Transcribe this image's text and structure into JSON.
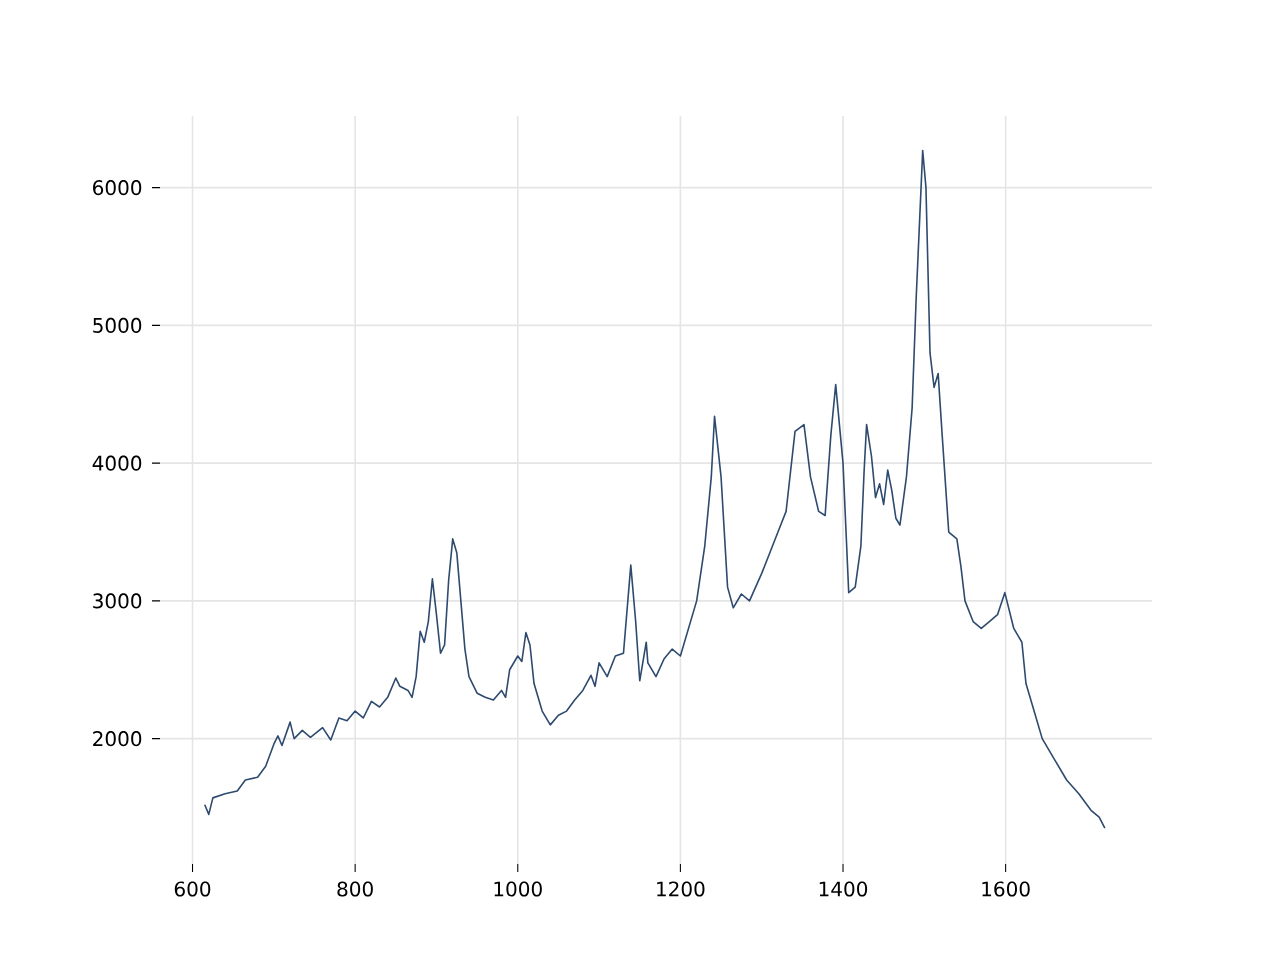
{
  "chart_data": {
    "type": "line",
    "color": "#2e4a6e",
    "grid": true,
    "marker": "none",
    "line_style": "solid",
    "x": [
      615,
      620,
      625,
      640,
      655,
      665,
      680,
      690,
      700,
      705,
      710,
      720,
      725,
      735,
      745,
      760,
      770,
      780,
      790,
      800,
      810,
      820,
      830,
      840,
      850,
      855,
      865,
      870,
      875,
      880,
      885,
      890,
      895,
      900,
      905,
      910,
      915,
      920,
      925,
      930,
      935,
      940,
      950,
      960,
      970,
      980,
      985,
      990,
      1000,
      1005,
      1010,
      1015,
      1020,
      1030,
      1040,
      1050,
      1060,
      1070,
      1080,
      1090,
      1095,
      1100,
      1110,
      1120,
      1130,
      1139,
      1145,
      1150,
      1158,
      1160,
      1170,
      1180,
      1190,
      1200,
      1210,
      1220,
      1230,
      1238,
      1242,
      1250,
      1258,
      1265,
      1275,
      1285,
      1300,
      1310,
      1320,
      1330,
      1341,
      1352,
      1360,
      1370,
      1378,
      1385,
      1391,
      1400,
      1407,
      1415,
      1422,
      1426,
      1429,
      1435,
      1440,
      1445,
      1450,
      1455,
      1460,
      1465,
      1470,
      1478,
      1485,
      1490,
      1498,
      1502,
      1507,
      1512,
      1517,
      1522,
      1530,
      1540,
      1545,
      1550,
      1560,
      1570,
      1580,
      1590,
      1599,
      1610,
      1620,
      1625,
      1635,
      1645,
      1660,
      1675,
      1690,
      1705,
      1715,
      1722
    ],
    "values": [
      1520,
      1450,
      1570,
      1600,
      1620,
      1700,
      1720,
      1800,
      1960,
      2020,
      1950,
      2120,
      2000,
      2060,
      2010,
      2080,
      1990,
      2150,
      2130,
      2200,
      2150,
      2270,
      2230,
      2300,
      2440,
      2380,
      2350,
      2300,
      2450,
      2780,
      2700,
      2850,
      3160,
      2900,
      2620,
      2680,
      3150,
      3450,
      3350,
      3000,
      2650,
      2450,
      2330,
      2300,
      2280,
      2350,
      2300,
      2500,
      2600,
      2560,
      2770,
      2680,
      2400,
      2200,
      2100,
      2170,
      2200,
      2280,
      2350,
      2460,
      2380,
      2550,
      2450,
      2600,
      2620,
      3260,
      2850,
      2420,
      2700,
      2550,
      2450,
      2580,
      2650,
      2600,
      2800,
      3000,
      3400,
      3900,
      4340,
      3900,
      3100,
      2950,
      3050,
      3000,
      3200,
      3350,
      3500,
      3650,
      4230,
      4280,
      3900,
      3650,
      3620,
      4200,
      4570,
      4000,
      3060,
      3100,
      3400,
      3950,
      4280,
      4050,
      3750,
      3850,
      3700,
      3950,
      3800,
      3600,
      3550,
      3900,
      4400,
      5200,
      6270,
      6000,
      4800,
      4550,
      4650,
      4200,
      3500,
      3450,
      3250,
      3000,
      2850,
      2800,
      2850,
      2900,
      3060,
      2800,
      2700,
      2400,
      2200,
      2000,
      1850,
      1700,
      1600,
      1480,
      1430,
      1350
    ],
    "xlim": [
      560,
      1780
    ],
    "ylim": [
      1090,
      6520
    ],
    "xticks": [
      600,
      800,
      1000,
      1200,
      1400,
      1600
    ],
    "yticks": [
      2000,
      3000,
      4000,
      5000,
      6000
    ]
  }
}
